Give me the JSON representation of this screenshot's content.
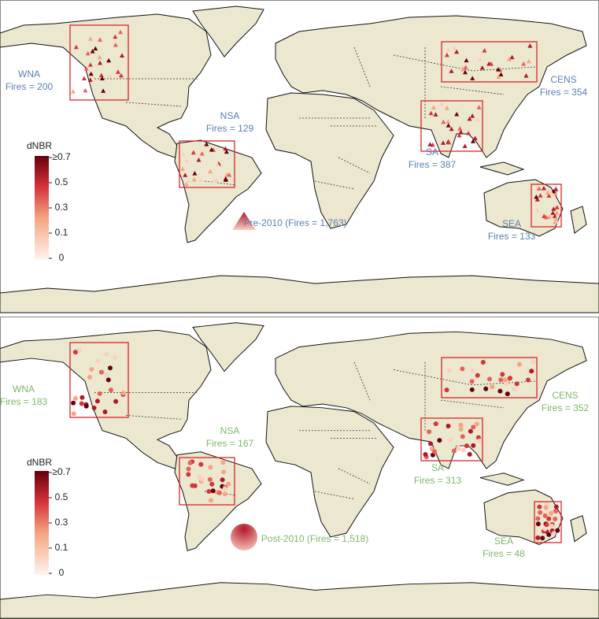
{
  "panels": [
    {
      "regions": [
        {
          "name": "WNA",
          "fires": "Fires = 200"
        },
        {
          "name": "NSA",
          "fires": "Fires = 129"
        },
        {
          "name": "CENS",
          "fires": "Fires = 354"
        },
        {
          "name": "SA",
          "fires": "Fires = 387"
        },
        {
          "name": "SEA",
          "fires": "Fires = 133"
        }
      ],
      "legend": "Pre-2010 (Fires = 1,763)",
      "colorbar": {
        "title": "dNBR",
        "ticks": [
          "≥0.7",
          "0.5",
          "0.3",
          "0.1",
          "0"
        ]
      }
    },
    {
      "regions": [
        {
          "name": "WNA",
          "fires": "Fires = 183"
        },
        {
          "name": "NSA",
          "fires": "Fires = 167"
        },
        {
          "name": "CENS",
          "fires": "Fires = 352"
        },
        {
          "name": "SA",
          "fires": "Fires = 313"
        },
        {
          "name": "SEA",
          "fires": "Fires = 48"
        }
      ],
      "legend": "Post-2010 (Fires = 1,518)",
      "colorbar": {
        "title": "dNBR",
        "ticks": [
          "≥0.7",
          "0.5",
          "0.3",
          "0.1",
          "0"
        ]
      }
    }
  ]
}
